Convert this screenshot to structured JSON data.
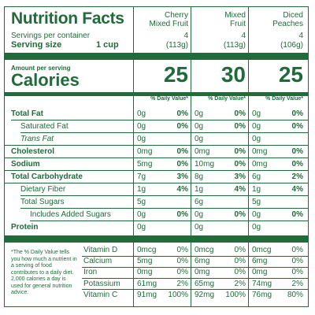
{
  "header": {
    "title": "Nutrition Facts",
    "servings_label": "Servings per container",
    "serving_size_label": "Serving size",
    "serving_size_value": "1 cup",
    "amount_per_serving": "Amount per serving",
    "calories_label": "Calories",
    "dv_header": "% Daily Value*"
  },
  "products": [
    {
      "name_line1": "Cherry",
      "name_line2": "Mixed Fruit",
      "servings": "4",
      "weight": "(113g)",
      "calories": "25",
      "nutrients": [
        {
          "amt": "0g",
          "pct": "0%"
        },
        {
          "amt": "0g",
          "pct": "0%"
        },
        {
          "amt": "0g",
          "pct": ""
        },
        {
          "amt": "0mg",
          "pct": "0%"
        },
        {
          "amt": "5mg",
          "pct": "0%"
        },
        {
          "amt": "7g",
          "pct": "3%"
        },
        {
          "amt": "1g",
          "pct": "4%"
        },
        {
          "amt": "5g",
          "pct": ""
        },
        {
          "amt": "0g",
          "pct": "0%"
        },
        {
          "amt": "0g",
          "pct": ""
        }
      ],
      "vitamins": [
        {
          "amt": "0mcg",
          "pct": "0%"
        },
        {
          "amt": "5mg",
          "pct": "0%"
        },
        {
          "amt": "0mg",
          "pct": "0%"
        },
        {
          "amt": "61mg",
          "pct": "2%"
        },
        {
          "amt": "91mg",
          "pct": "100%"
        }
      ]
    },
    {
      "name_line1": "Mixed",
      "name_line2": "Fruit",
      "servings": "4",
      "weight": "(113g)",
      "calories": "30",
      "nutrients": [
        {
          "amt": "0g",
          "pct": "0%"
        },
        {
          "amt": "0g",
          "pct": "0%"
        },
        {
          "amt": "0g",
          "pct": ""
        },
        {
          "amt": "0mg",
          "pct": "0%"
        },
        {
          "amt": "10mg",
          "pct": "0%"
        },
        {
          "amt": "8g",
          "pct": "3%"
        },
        {
          "amt": "1g",
          "pct": "4%"
        },
        {
          "amt": "6g",
          "pct": ""
        },
        {
          "amt": "0g",
          "pct": "0%"
        },
        {
          "amt": "0g",
          "pct": ""
        }
      ],
      "vitamins": [
        {
          "amt": "0mcg",
          "pct": "0%"
        },
        {
          "amt": "6mg",
          "pct": "0%"
        },
        {
          "amt": "0mg",
          "pct": "0%"
        },
        {
          "amt": "65mg",
          "pct": "2%"
        },
        {
          "amt": "92mg",
          "pct": "100%"
        }
      ]
    },
    {
      "name_line1": "Diced",
      "name_line2": "Peaches",
      "servings": "4",
      "weight": "(106g)",
      "calories": "25",
      "nutrients": [
        {
          "amt": "0g",
          "pct": "0%"
        },
        {
          "amt": "0g",
          "pct": "0%"
        },
        {
          "amt": "0g",
          "pct": ""
        },
        {
          "amt": "0mg",
          "pct": "0%"
        },
        {
          "amt": "0mg",
          "pct": "0%"
        },
        {
          "amt": "6g",
          "pct": "2%"
        },
        {
          "amt": "1g",
          "pct": "4%"
        },
        {
          "amt": "5g",
          "pct": ""
        },
        {
          "amt": "0g",
          "pct": "0%"
        },
        {
          "amt": "0g",
          "pct": ""
        }
      ],
      "vitamins": [
        {
          "amt": "0mcg",
          "pct": "0%"
        },
        {
          "amt": "6mg",
          "pct": "0%"
        },
        {
          "amt": "0mg",
          "pct": "0%"
        },
        {
          "amt": "74mg",
          "pct": "2%"
        },
        {
          "amt": "76mg",
          "pct": "80%"
        }
      ]
    }
  ],
  "nutrient_rows": [
    {
      "label": "Total Fat",
      "bold": true,
      "indent": 0
    },
    {
      "label": "Saturated Fat",
      "bold": false,
      "indent": 1
    },
    {
      "label": "Trans Fat",
      "bold": false,
      "indent": 1
    },
    {
      "label": "Cholesterol",
      "bold": true,
      "indent": 0
    },
    {
      "label": "Sodium",
      "bold": true,
      "indent": 0
    },
    {
      "label": "Total Carbohydrate",
      "bold": true,
      "indent": 0
    },
    {
      "label": "Dietary Fiber",
      "bold": false,
      "indent": 1
    },
    {
      "label": "Total Sugars",
      "bold": false,
      "indent": 1
    },
    {
      "label": "Includes Added Sugars",
      "bold": false,
      "indent": 2
    },
    {
      "label": "Protein",
      "bold": true,
      "indent": 0
    }
  ],
  "vitamin_rows": [
    "Vitamin D",
    "Calcium",
    "Iron",
    "Potassium",
    "Vitamin C"
  ],
  "footnote": "*The % Daily Value tells you how much a nutrient in a serving of food contributes to a daily diet. 2,000 calories a day is used for general nutrition advice."
}
